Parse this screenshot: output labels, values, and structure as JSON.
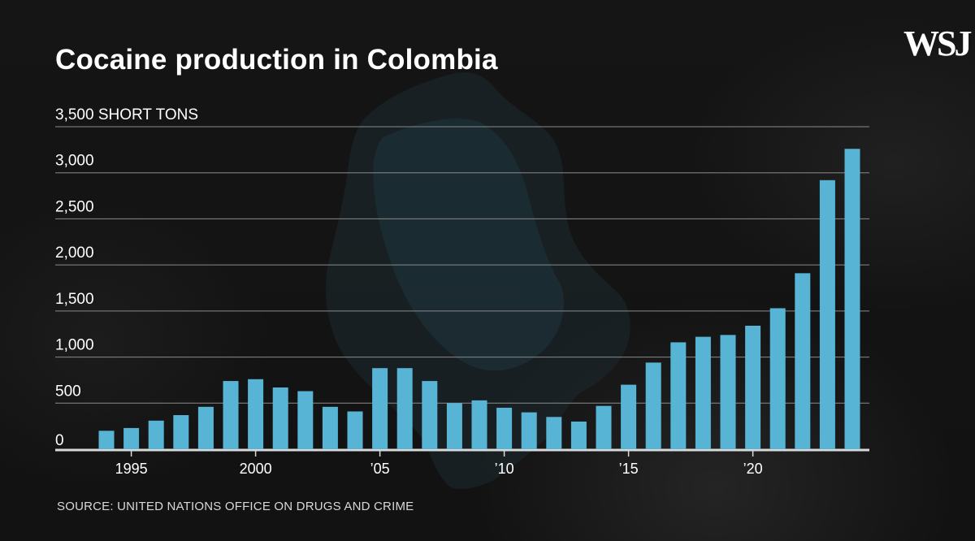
{
  "header": {
    "title": "Cocaine production in Colombia",
    "logo": "WSJ"
  },
  "footer": {
    "source": "SOURCE: UNITED NATIONS OFFICE ON DRUGS AND CRIME"
  },
  "colors": {
    "bar": "#58b4d4",
    "gridline": "#8a8a8a",
    "baseline": "#d9d9d9"
  },
  "chart_data": {
    "type": "bar",
    "title": "Cocaine production in Colombia",
    "ylabel_unit": "SHORT TONS",
    "ylim": [
      0,
      3500
    ],
    "yticks": [
      {
        "value": 0,
        "label": "0"
      },
      {
        "value": 500,
        "label": "500"
      },
      {
        "value": 1000,
        "label": "1,000"
      },
      {
        "value": 1500,
        "label": "1,500"
      },
      {
        "value": 2000,
        "label": "2,000"
      },
      {
        "value": 2500,
        "label": "2,500"
      },
      {
        "value": 3000,
        "label": "3,000"
      },
      {
        "value": 3500,
        "label": "3,500 SHORT TONS"
      }
    ],
    "xticks": [
      {
        "year": 1995,
        "label": "1995"
      },
      {
        "year": 2000,
        "label": "2000"
      },
      {
        "year": 2005,
        "label": "’05"
      },
      {
        "year": 2010,
        "label": "’10"
      },
      {
        "year": 2015,
        "label": "’15"
      },
      {
        "year": 2020,
        "label": "’20"
      }
    ],
    "x": [
      1994,
      1995,
      1996,
      1997,
      1998,
      1999,
      2000,
      2001,
      2002,
      2003,
      2004,
      2005,
      2006,
      2007,
      2008,
      2009,
      2010,
      2011,
      2012,
      2013,
      2014,
      2015,
      2016,
      2017,
      2018,
      2019,
      2020,
      2021,
      2022,
      2023,
      2024
    ],
    "values": [
      200,
      230,
      310,
      370,
      460,
      740,
      760,
      670,
      630,
      460,
      410,
      880,
      880,
      740,
      500,
      530,
      450,
      400,
      350,
      300,
      470,
      700,
      940,
      1160,
      1220,
      1240,
      1340,
      1530,
      1910,
      2920,
      3260
    ],
    "grid": true,
    "legend": "none"
  }
}
